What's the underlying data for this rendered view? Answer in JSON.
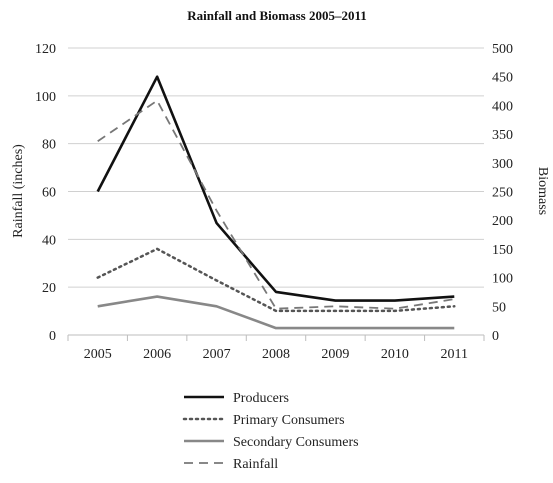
{
  "chart_data": {
    "type": "line",
    "title": "Rainfall and Biomass 2005–2011",
    "categories": [
      "2005",
      "2006",
      "2007",
      "2008",
      "2009",
      "2010",
      "2011"
    ],
    "ylabel_left": "Rainfall (inches)",
    "ylabel_right": "Biomass",
    "ylim_left": [
      0,
      120
    ],
    "ylim_right": [
      0,
      500
    ],
    "yticks_left": [
      "0",
      "20",
      "40",
      "60",
      "80",
      "100",
      "120"
    ],
    "yticks_right": [
      "0",
      "50",
      "100",
      "150",
      "200",
      "250",
      "300",
      "350",
      "400",
      "450",
      "500"
    ],
    "grid": true,
    "legend_position": "bottom",
    "series": [
      {
        "name": "Producers",
        "axis": "right",
        "style": "solid",
        "color": "#111111",
        "values": [
          250,
          450,
          195,
          75,
          60,
          60,
          67
        ]
      },
      {
        "name": "Primary Consumers",
        "axis": "right",
        "style": "dotted",
        "color": "#555555",
        "values": [
          100,
          150,
          95,
          42,
          42,
          42,
          50
        ]
      },
      {
        "name": "Secondary Consumers",
        "axis": "right",
        "style": "solid",
        "color": "#888888",
        "values": [
          50,
          67,
          50,
          12,
          12,
          12,
          12
        ]
      },
      {
        "name": "Rainfall",
        "axis": "left",
        "style": "dashed",
        "color": "#777777",
        "values": [
          81,
          98,
          52,
          11,
          12,
          11,
          15
        ]
      }
    ]
  }
}
